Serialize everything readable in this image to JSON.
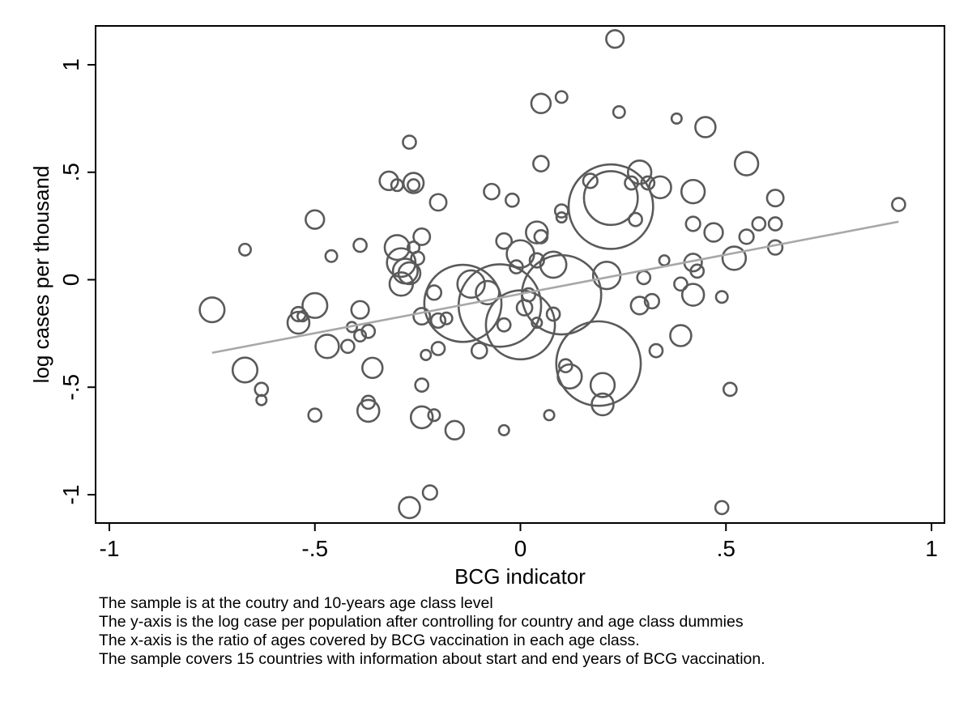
{
  "chart_data": {
    "type": "scatter",
    "subtype": "weighted-bubble-scatter-with-fitted-line",
    "title": "",
    "xlabel": "BCG indicator",
    "ylabel": "log cases per thousand",
    "xlim": [
      -1,
      1
    ],
    "ylim": [
      -1.1,
      1.2
    ],
    "xticks": [
      {
        "v": -1,
        "label": "-1"
      },
      {
        "v": -0.5,
        "label": "-.5"
      },
      {
        "v": 0,
        "label": "0"
      },
      {
        "v": 0.5,
        "label": ".5"
      },
      {
        "v": 1,
        "label": "1"
      }
    ],
    "yticks": [
      {
        "v": -1,
        "label": "-1"
      },
      {
        "v": -0.5,
        "label": "-.5"
      },
      {
        "v": 0,
        "label": "0"
      },
      {
        "v": 0.5,
        "label": ".5"
      },
      {
        "v": 1,
        "label": "1"
      }
    ],
    "grid": false,
    "fit_line": {
      "x": [
        -0.75,
        0.92
      ],
      "y": [
        -0.34,
        0.27
      ]
    },
    "points": [
      {
        "x": 0.22,
        "y": 0.34,
        "w": 210
      },
      {
        "x": 0.22,
        "y": 0.38,
        "w": 85
      },
      {
        "x": 0.19,
        "y": -0.39,
        "w": 210
      },
      {
        "x": 0.1,
        "y": -0.07,
        "w": 185
      },
      {
        "x": -0.14,
        "y": -0.11,
        "w": 175
      },
      {
        "x": -0.05,
        "y": -0.12,
        "w": 200
      },
      {
        "x": 0.0,
        "y": -0.21,
        "w": 140
      },
      {
        "x": -0.75,
        "y": -0.14,
        "w": 18
      },
      {
        "x": -0.67,
        "y": -0.42,
        "w": 18
      },
      {
        "x": -0.5,
        "y": -0.12,
        "w": 18
      },
      {
        "x": -0.54,
        "y": -0.2,
        "w": 14
      },
      {
        "x": -0.47,
        "y": -0.31,
        "w": 16
      },
      {
        "x": -0.3,
        "y": 0.15,
        "w": 18
      },
      {
        "x": -0.29,
        "y": 0.08,
        "w": 24
      },
      {
        "x": -0.29,
        "y": -0.02,
        "w": 16
      },
      {
        "x": -0.28,
        "y": 0.04,
        "w": 18
      },
      {
        "x": -0.27,
        "y": 0.03,
        "w": 14
      },
      {
        "x": -0.37,
        "y": -0.61,
        "w": 14
      },
      {
        "x": -0.36,
        "y": -0.41,
        "w": 12
      },
      {
        "x": -0.24,
        "y": -0.64,
        "w": 14
      },
      {
        "x": -0.27,
        "y": -1.06,
        "w": 13
      },
      {
        "x": -0.12,
        "y": -0.02,
        "w": 22
      },
      {
        "x": -0.08,
        "y": -0.06,
        "w": 16
      },
      {
        "x": 0.0,
        "y": 0.12,
        "w": 22
      },
      {
        "x": 0.04,
        "y": 0.22,
        "w": 14
      },
      {
        "x": 0.08,
        "y": 0.07,
        "w": 20
      },
      {
        "x": 0.21,
        "y": 0.02,
        "w": 22
      },
      {
        "x": 0.12,
        "y": -0.45,
        "w": 17
      },
      {
        "x": 0.2,
        "y": -0.49,
        "w": 17
      },
      {
        "x": 0.2,
        "y": -0.58,
        "w": 14
      },
      {
        "x": 0.29,
        "y": 0.5,
        "w": 16
      },
      {
        "x": 0.34,
        "y": 0.43,
        "w": 14
      },
      {
        "x": 0.42,
        "y": 0.41,
        "w": 16
      },
      {
        "x": 0.55,
        "y": 0.54,
        "w": 16
      },
      {
        "x": 0.52,
        "y": 0.1,
        "w": 16
      },
      {
        "x": 0.42,
        "y": -0.07,
        "w": 14
      },
      {
        "x": 0.39,
        "y": -0.26,
        "w": 13
      },
      {
        "x": 0.45,
        "y": 0.71,
        "w": 12
      },
      {
        "x": 0.05,
        "y": 0.82,
        "w": 11
      },
      {
        "x": -0.32,
        "y": 0.46,
        "w": 10
      },
      {
        "x": -0.26,
        "y": 0.45,
        "w": 12
      },
      {
        "x": -0.5,
        "y": 0.28,
        "w": 10
      },
      {
        "x": -0.16,
        "y": -0.7,
        "w": 10
      },
      {
        "x": -0.54,
        "y": -0.16,
        "w": 6
      },
      {
        "x": -0.39,
        "y": -0.14,
        "w": 9
      },
      {
        "x": -0.2,
        "y": 0.36,
        "w": 8
      },
      {
        "x": -0.07,
        "y": 0.41,
        "w": 7
      },
      {
        "x": 0.05,
        "y": 0.54,
        "w": 7
      },
      {
        "x": 0.23,
        "y": 1.12,
        "w": 9
      },
      {
        "x": 0.47,
        "y": 0.22,
        "w": 10
      },
      {
        "x": 0.42,
        "y": 0.08,
        "w": 9
      },
      {
        "x": 0.29,
        "y": -0.12,
        "w": 9
      },
      {
        "x": -0.24,
        "y": -0.17,
        "w": 8
      },
      {
        "x": -0.24,
        "y": 0.2,
        "w": 8
      },
      {
        "x": -0.04,
        "y": 0.18,
        "w": 7
      },
      {
        "x": 0.62,
        "y": 0.38,
        "w": 8
      },
      {
        "x": 0.62,
        "y": 0.26,
        "w": 5
      },
      {
        "x": 0.58,
        "y": 0.26,
        "w": 5
      },
      {
        "x": 0.55,
        "y": 0.2,
        "w": 6
      },
      {
        "x": 0.62,
        "y": 0.15,
        "w": 6
      },
      {
        "x": 0.42,
        "y": 0.26,
        "w": 6
      },
      {
        "x": 0.43,
        "y": 0.04,
        "w": 5
      },
      {
        "x": 0.39,
        "y": -0.02,
        "w": 5
      },
      {
        "x": 0.49,
        "y": -0.08,
        "w": 4
      },
      {
        "x": 0.51,
        "y": -0.51,
        "w": 5
      },
      {
        "x": 0.49,
        "y": -1.06,
        "w": 5
      },
      {
        "x": 0.3,
        "y": 0.01,
        "w": 5
      },
      {
        "x": 0.32,
        "y": -0.1,
        "w": 6
      },
      {
        "x": 0.33,
        "y": -0.33,
        "w": 5
      },
      {
        "x": 0.28,
        "y": 0.28,
        "w": 5
      },
      {
        "x": 0.27,
        "y": 0.45,
        "w": 5
      },
      {
        "x": 0.31,
        "y": 0.45,
        "w": 5
      },
      {
        "x": 0.24,
        "y": 0.78,
        "w": 4
      },
      {
        "x": 0.38,
        "y": 0.75,
        "w": 3
      },
      {
        "x": 0.35,
        "y": 0.09,
        "w": 3
      },
      {
        "x": 0.17,
        "y": 0.46,
        "w": 6
      },
      {
        "x": 0.1,
        "y": 0.85,
        "w": 4
      },
      {
        "x": 0.1,
        "y": 0.32,
        "w": 5
      },
      {
        "x": 0.1,
        "y": 0.29,
        "w": 3
      },
      {
        "x": 0.11,
        "y": -0.4,
        "w": 5
      },
      {
        "x": 0.08,
        "y": -0.16,
        "w": 5
      },
      {
        "x": 0.07,
        "y": -0.63,
        "w": 3
      },
      {
        "x": 0.05,
        "y": 0.2,
        "w": 5
      },
      {
        "x": 0.04,
        "y": 0.09,
        "w": 6
      },
      {
        "x": 0.02,
        "y": -0.07,
        "w": 5
      },
      {
        "x": 0.01,
        "y": -0.13,
        "w": 7
      },
      {
        "x": -0.01,
        "y": 0.06,
        "w": 5
      },
      {
        "x": -0.02,
        "y": 0.37,
        "w": 5
      },
      {
        "x": -0.04,
        "y": -0.21,
        "w": 5
      },
      {
        "x": -0.04,
        "y": -0.7,
        "w": 3
      },
      {
        "x": 0.04,
        "y": -0.2,
        "w": 3
      },
      {
        "x": -0.1,
        "y": -0.33,
        "w": 7
      },
      {
        "x": -0.18,
        "y": -0.18,
        "w": 4
      },
      {
        "x": -0.2,
        "y": -0.32,
        "w": 5
      },
      {
        "x": -0.2,
        "y": -0.19,
        "w": 6
      },
      {
        "x": -0.21,
        "y": -0.06,
        "w": 6
      },
      {
        "x": -0.21,
        "y": -0.63,
        "w": 4
      },
      {
        "x": -0.22,
        "y": -0.99,
        "w": 6
      },
      {
        "x": -0.23,
        "y": -0.35,
        "w": 3
      },
      {
        "x": -0.24,
        "y": -0.49,
        "w": 5
      },
      {
        "x": -0.25,
        "y": 0.1,
        "w": 5
      },
      {
        "x": -0.26,
        "y": 0.15,
        "w": 4
      },
      {
        "x": -0.26,
        "y": 0.44,
        "w": 4
      },
      {
        "x": -0.27,
        "y": 0.64,
        "w": 5
      },
      {
        "x": -0.3,
        "y": 0.44,
        "w": 4
      },
      {
        "x": -0.37,
        "y": -0.57,
        "w": 5
      },
      {
        "x": -0.37,
        "y": -0.24,
        "w": 5
      },
      {
        "x": -0.39,
        "y": 0.16,
        "w": 5
      },
      {
        "x": -0.39,
        "y": -0.26,
        "w": 4
      },
      {
        "x": -0.41,
        "y": -0.22,
        "w": 3
      },
      {
        "x": -0.42,
        "y": -0.31,
        "w": 5
      },
      {
        "x": -0.46,
        "y": 0.11,
        "w": 4
      },
      {
        "x": -0.5,
        "y": -0.63,
        "w": 5
      },
      {
        "x": -0.53,
        "y": -0.17,
        "w": 3
      },
      {
        "x": -0.63,
        "y": -0.51,
        "w": 5
      },
      {
        "x": -0.63,
        "y": -0.56,
        "w": 3
      },
      {
        "x": -0.67,
        "y": 0.14,
        "w": 4
      },
      {
        "x": 0.92,
        "y": 0.35,
        "w": 5
      }
    ]
  },
  "notes": [
    "The sample is at the coutry and 10-years age class level",
    "The y-axis is the log case per population after controlling for country and age class dummies",
    "The x-axis is the ratio of ages covered by BCG vaccination in each age class.",
    "The sample covers 15 countries with information about start and end years of BCG vaccination."
  ]
}
